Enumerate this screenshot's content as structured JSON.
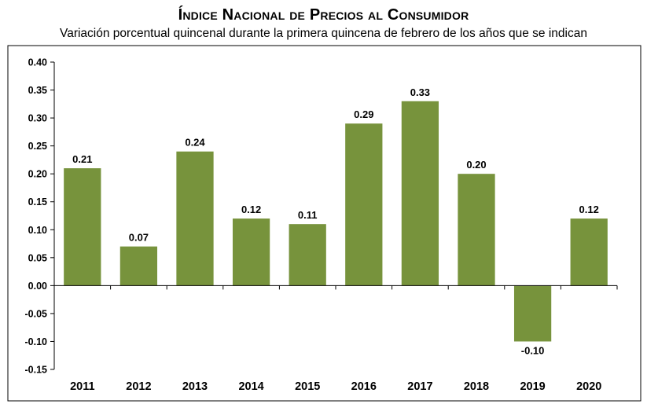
{
  "title": "Índice Nacional de Precios al Consumidor",
  "subtitle": "Variación porcentual quincenal durante la primera quincena de febrero de los años que se indican",
  "colors": {
    "bar": "#77933c",
    "axis": "#000000",
    "background": "#ffffff"
  },
  "chart_data": {
    "type": "bar",
    "categories": [
      "2011",
      "2012",
      "2013",
      "2014",
      "2015",
      "2016",
      "2017",
      "2018",
      "2019",
      "2020"
    ],
    "values": [
      0.21,
      0.07,
      0.24,
      0.12,
      0.11,
      0.29,
      0.33,
      0.2,
      -0.1,
      0.12
    ],
    "data_labels": [
      "0.21",
      "0.07",
      "0.24",
      "0.12",
      "0.11",
      "0.29",
      "0.33",
      "0.20",
      "-0.10",
      "0.12"
    ],
    "ylim": [
      -0.15,
      0.4
    ],
    "yticks": [
      0.4,
      0.35,
      0.3,
      0.25,
      0.2,
      0.15,
      0.1,
      0.05,
      0.0,
      -0.05,
      -0.1,
      -0.15
    ],
    "ytick_labels": [
      "0.40",
      "0.35",
      "0.30",
      "0.25",
      "0.20",
      "0.15",
      "0.10",
      "0.05",
      "0.00",
      "-0.05",
      "-0.10",
      "-0.15"
    ],
    "grid": false,
    "legend": "none"
  }
}
